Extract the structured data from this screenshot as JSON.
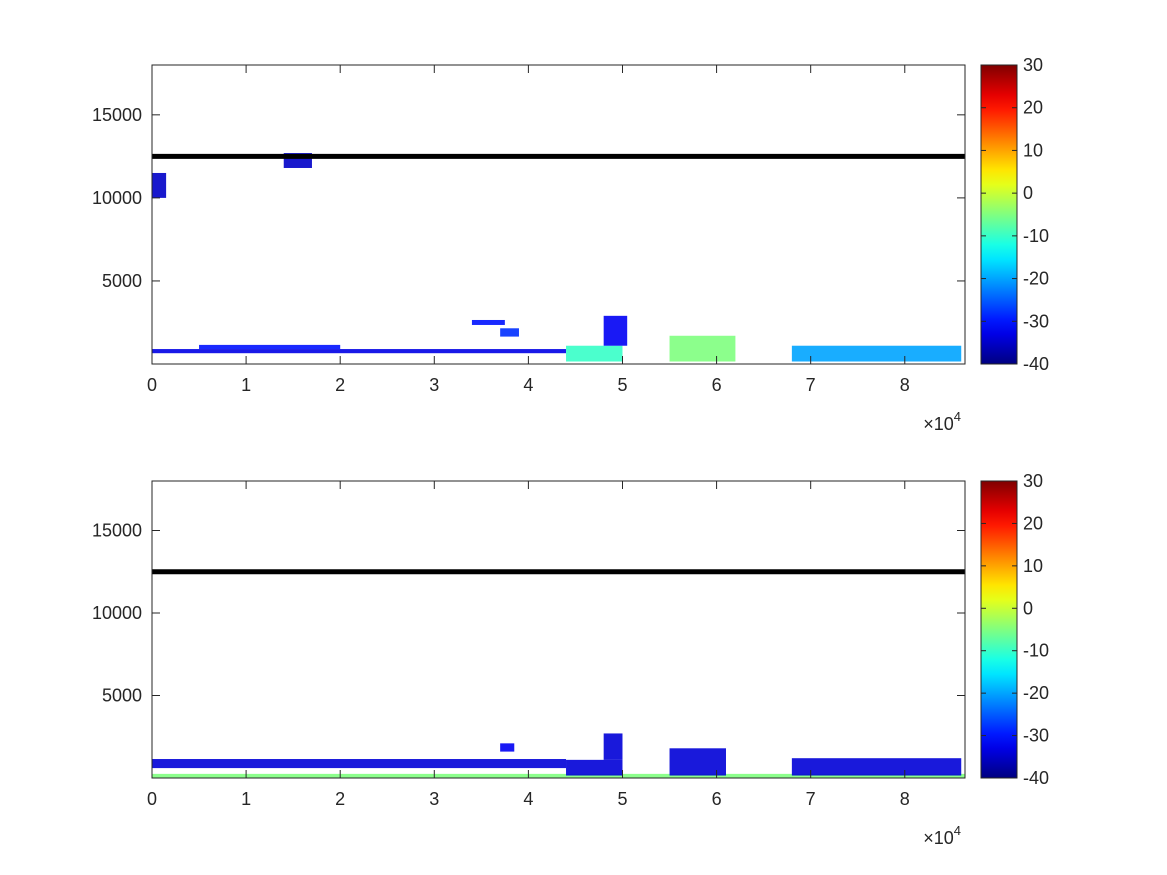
{
  "colormap": "jet",
  "colors": {
    "axis": "#262626",
    "reference_line": "#000000",
    "background": "#ffffff"
  },
  "chart_data": [
    {
      "type": "heatmap",
      "title": "",
      "xlabel": "",
      "ylabel": "",
      "xlim": [
        0,
        86400
      ],
      "ylim": [
        0,
        18000
      ],
      "x_ticks": [
        0,
        10000,
        20000,
        30000,
        40000,
        50000,
        60000,
        70000,
        80000
      ],
      "x_tick_labels": [
        "0",
        "1",
        "2",
        "3",
        "4",
        "5",
        "6",
        "7",
        "8"
      ],
      "x_exponent_label": "×10",
      "x_exponent_power": "4",
      "y_ticks": [
        5000,
        10000,
        15000
      ],
      "y_tick_labels": [
        "5000",
        "10000",
        "15000"
      ],
      "colorbar": {
        "clim": [
          -40,
          30
        ],
        "ticks": [
          "30",
          "20",
          "10",
          "0",
          "-10",
          "-20",
          "-30",
          "-40"
        ]
      },
      "reference_line": {
        "y": 12500
      },
      "features": [
        {
          "x": [
            0,
            44000
          ],
          "y": [
            650,
            900
          ],
          "value": -33
        },
        {
          "x": [
            5000,
            20000
          ],
          "y": [
            900,
            1150
          ],
          "value": -30
        },
        {
          "x": [
            34000,
            37500
          ],
          "y": [
            2350,
            2650
          ],
          "value": -30
        },
        {
          "x": [
            37000,
            39000
          ],
          "y": [
            1650,
            2150
          ],
          "value": -28
        },
        {
          "x": [
            44000,
            50000
          ],
          "y": [
            150,
            1100
          ],
          "value": -10
        },
        {
          "x": [
            48000,
            50500
          ],
          "y": [
            1100,
            2900
          ],
          "value": -32
        },
        {
          "x": [
            55000,
            62000
          ],
          "y": [
            150,
            1700
          ],
          "value": -5
        },
        {
          "x": [
            68000,
            86000
          ],
          "y": [
            150,
            1100
          ],
          "value": -20
        },
        {
          "x": [
            0,
            1500
          ],
          "y": [
            10000,
            11500
          ],
          "value": -35
        },
        {
          "x": [
            14000,
            17000
          ],
          "y": [
            11800,
            12700
          ],
          "value": -35
        }
      ]
    },
    {
      "type": "heatmap",
      "title": "",
      "xlabel": "",
      "ylabel": "",
      "xlim": [
        0,
        86400
      ],
      "ylim": [
        0,
        18000
      ],
      "x_ticks": [
        0,
        10000,
        20000,
        30000,
        40000,
        50000,
        60000,
        70000,
        80000
      ],
      "x_tick_labels": [
        "0",
        "1",
        "2",
        "3",
        "4",
        "5",
        "6",
        "7",
        "8"
      ],
      "x_exponent_label": "×10",
      "x_exponent_power": "4",
      "y_ticks": [
        5000,
        10000,
        15000
      ],
      "y_tick_labels": [
        "5000",
        "10000",
        "15000"
      ],
      "colorbar": {
        "clim": [
          -40,
          30
        ],
        "ticks": [
          "30",
          "20",
          "10",
          "0",
          "-10",
          "-20",
          "-30",
          "-40"
        ]
      },
      "reference_line": {
        "y": 12500
      },
      "features": [
        {
          "x": [
            0,
            86400
          ],
          "y": [
            0,
            250
          ],
          "value": -5
        },
        {
          "x": [
            0,
            44000
          ],
          "y": [
            600,
            1150
          ],
          "value": -34
        },
        {
          "x": [
            37000,
            38500
          ],
          "y": [
            1600,
            2100
          ],
          "value": -32
        },
        {
          "x": [
            44000,
            50000
          ],
          "y": [
            150,
            1100
          ],
          "value": -34
        },
        {
          "x": [
            48000,
            50000
          ],
          "y": [
            1100,
            2700
          ],
          "value": -34
        },
        {
          "x": [
            55000,
            61000
          ],
          "y": [
            150,
            1800
          ],
          "value": -34
        },
        {
          "x": [
            68000,
            86000
          ],
          "y": [
            150,
            1200
          ],
          "value": -34
        }
      ]
    }
  ]
}
